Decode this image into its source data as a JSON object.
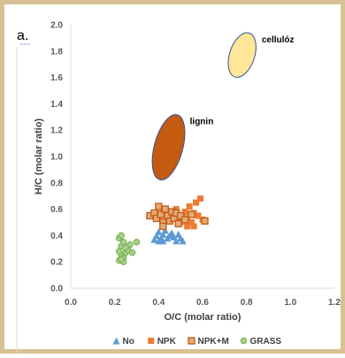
{
  "chart_data": {
    "type": "scatter",
    "panel_label": "a.",
    "xlabel": "O/C (molar ratio)",
    "ylabel": "H/C (molar ratio)",
    "xlim": [
      0.0,
      1.2
    ],
    "ylim": [
      0.0,
      2.0
    ],
    "x_ticks": [
      "0.0",
      "0.2",
      "0.4",
      "0.6",
      "0.8",
      "1.0",
      "1.2"
    ],
    "y_ticks": [
      "0.0",
      "0.2",
      "0.4",
      "0.6",
      "0.8",
      "1.0",
      "1.2",
      "1.4",
      "1.6",
      "1.8",
      "2.0"
    ],
    "grid": false,
    "legend_position": "bottom",
    "series": [
      {
        "name": "No",
        "marker": "triangle",
        "color": "#5b9bd5",
        "points": [
          [
            0.38,
            0.37
          ],
          [
            0.39,
            0.4
          ],
          [
            0.4,
            0.43
          ],
          [
            0.41,
            0.38
          ],
          [
            0.42,
            0.41
          ],
          [
            0.43,
            0.44
          ],
          [
            0.44,
            0.38
          ],
          [
            0.45,
            0.4
          ],
          [
            0.46,
            0.42
          ],
          [
            0.47,
            0.39
          ],
          [
            0.48,
            0.36
          ],
          [
            0.49,
            0.41
          ],
          [
            0.5,
            0.38
          ],
          [
            0.51,
            0.36
          ],
          [
            0.42,
            0.36
          ],
          [
            0.4,
            0.36
          ]
        ]
      },
      {
        "name": "NPK",
        "marker": "square",
        "color": "#ed7d31",
        "points": [
          [
            0.4,
            0.54
          ],
          [
            0.42,
            0.58
          ],
          [
            0.44,
            0.52
          ],
          [
            0.46,
            0.56
          ],
          [
            0.48,
            0.6
          ],
          [
            0.5,
            0.5
          ],
          [
            0.51,
            0.55
          ],
          [
            0.52,
            0.58
          ],
          [
            0.53,
            0.53
          ],
          [
            0.54,
            0.62
          ],
          [
            0.55,
            0.5
          ],
          [
            0.56,
            0.57
          ],
          [
            0.57,
            0.65
          ],
          [
            0.58,
            0.55
          ],
          [
            0.59,
            0.68
          ],
          [
            0.6,
            0.52
          ],
          [
            0.56,
            0.47
          ],
          [
            0.53,
            0.47
          ]
        ]
      },
      {
        "name": "NPK+M",
        "marker": "square-outline",
        "color": "#c55a11",
        "fill": "#e2a97c",
        "points": [
          [
            0.36,
            0.55
          ],
          [
            0.38,
            0.57
          ],
          [
            0.39,
            0.53
          ],
          [
            0.4,
            0.62
          ],
          [
            0.41,
            0.56
          ],
          [
            0.42,
            0.5
          ],
          [
            0.43,
            0.6
          ],
          [
            0.44,
            0.55
          ],
          [
            0.45,
            0.51
          ],
          [
            0.46,
            0.58
          ],
          [
            0.47,
            0.53
          ],
          [
            0.48,
            0.57
          ],
          [
            0.49,
            0.49
          ],
          [
            0.5,
            0.55
          ],
          [
            0.52,
            0.52
          ],
          [
            0.55,
            0.56
          ],
          [
            0.61,
            0.51
          ],
          [
            0.42,
            0.47
          ]
        ]
      },
      {
        "name": "GRASS",
        "marker": "circle",
        "color": "#70ad47",
        "fill": "#a9d18e",
        "points": [
          [
            0.22,
            0.21
          ],
          [
            0.23,
            0.25
          ],
          [
            0.22,
            0.28
          ],
          [
            0.24,
            0.23
          ],
          [
            0.23,
            0.32
          ],
          [
            0.25,
            0.27
          ],
          [
            0.24,
            0.35
          ],
          [
            0.22,
            0.38
          ],
          [
            0.23,
            0.4
          ],
          [
            0.26,
            0.29
          ],
          [
            0.27,
            0.33
          ],
          [
            0.25,
            0.31
          ],
          [
            0.24,
            0.2
          ],
          [
            0.28,
            0.27
          ],
          [
            0.3,
            0.35
          ],
          [
            0.23,
            0.22
          ]
        ]
      }
    ],
    "regions": [
      {
        "label": "lignin",
        "cx": 0.445,
        "cy": 1.07,
        "rx": 0.065,
        "ry": 0.255,
        "angle": 15,
        "fill": "#c55a11",
        "stroke": "#2f5597"
      },
      {
        "label": "cellulóz",
        "cx": 0.78,
        "cy": 1.77,
        "rx": 0.057,
        "ry": 0.175,
        "angle": 18,
        "fill": "#ffe699",
        "stroke": "#2f5597"
      }
    ]
  }
}
